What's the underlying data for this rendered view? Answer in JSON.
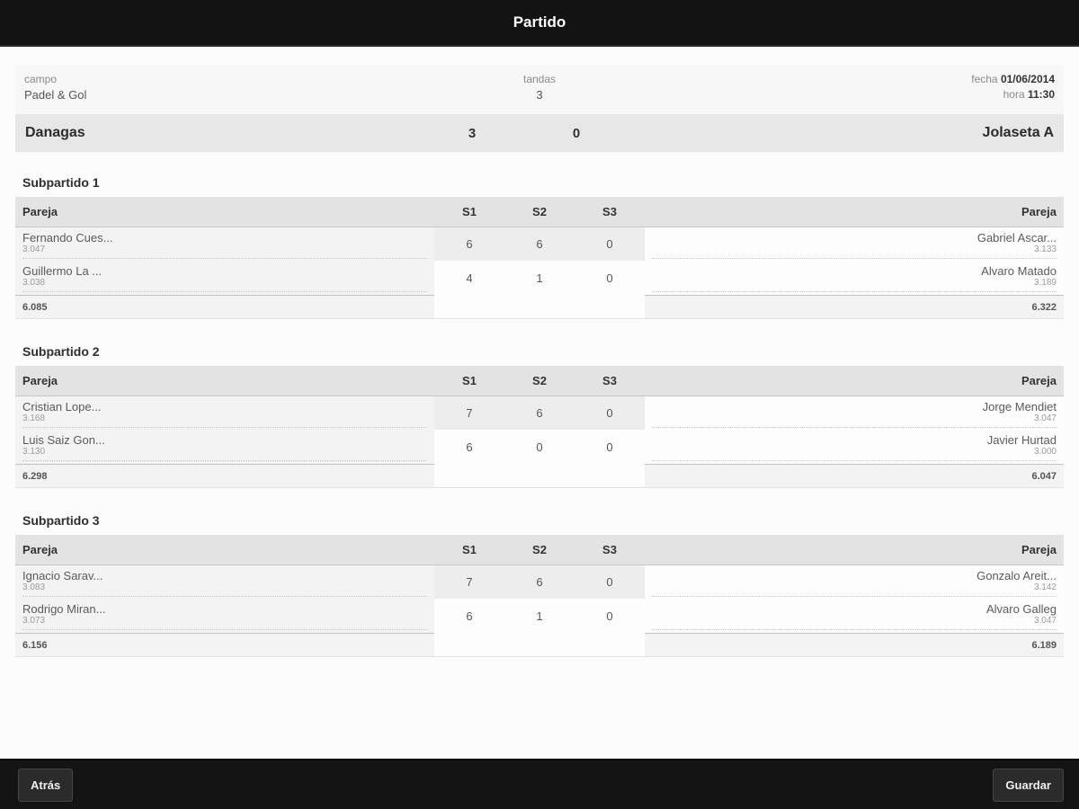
{
  "topbar": {
    "title": "Partido"
  },
  "info": {
    "campo_label": "campo",
    "campo_value": "Padel & Gol",
    "tandas_label": "tandas",
    "tandas_value": "3",
    "fecha_label": "fecha",
    "fecha_value": "01/06/2014",
    "hora_label": "hora",
    "hora_value": "11:30"
  },
  "score": {
    "home_team": "Danagas",
    "home_score": "3",
    "away_score": "0",
    "away_team": "Jolaseta A"
  },
  "labels": {
    "pareja": "Pareja",
    "s1": "S1",
    "s2": "S2",
    "s3": "S3"
  },
  "subpartidos": [
    {
      "title": "Subpartido 1",
      "sets": [
        [
          "6",
          "6",
          "0"
        ],
        [
          "4",
          "1",
          "0"
        ]
      ],
      "home": {
        "players": [
          {
            "name": "Fernando Cues...",
            "rating": "3.047"
          },
          {
            "name": "Guillermo La ...",
            "rating": "3.038"
          }
        ],
        "total": "6.085"
      },
      "away": {
        "players": [
          {
            "name": "Gabriel Ascar...",
            "rating": "3.133"
          },
          {
            "name": "Alvaro Matado",
            "rating": "3.189"
          }
        ],
        "total": "6.322"
      }
    },
    {
      "title": "Subpartido 2",
      "sets": [
        [
          "7",
          "6",
          "0"
        ],
        [
          "6",
          "0",
          "0"
        ]
      ],
      "home": {
        "players": [
          {
            "name": "Cristian Lope...",
            "rating": "3.168"
          },
          {
            "name": "Luis Saiz Gon...",
            "rating": "3.130"
          }
        ],
        "total": "6.298"
      },
      "away": {
        "players": [
          {
            "name": "Jorge Mendiet",
            "rating": "3.047"
          },
          {
            "name": "Javier Hurtad",
            "rating": "3.000"
          }
        ],
        "total": "6.047"
      }
    },
    {
      "title": "Subpartido 3",
      "sets": [
        [
          "7",
          "6",
          "0"
        ],
        [
          "6",
          "1",
          "0"
        ]
      ],
      "home": {
        "players": [
          {
            "name": "Ignacio Sarav...",
            "rating": "3.083"
          },
          {
            "name": "Rodrigo Miran...",
            "rating": "3.073"
          }
        ],
        "total": "6.156"
      },
      "away": {
        "players": [
          {
            "name": "Gonzalo Areit...",
            "rating": "3.142"
          },
          {
            "name": "Alvaro Galleg",
            "rating": "3.047"
          }
        ],
        "total": "6.189"
      }
    }
  ],
  "footer": {
    "back_label": "Atrás",
    "save_label": "Guardar"
  },
  "colors": {
    "topbar_bg": "#131313",
    "score_row_bg": "#e7e7e7",
    "table_header_bg": "#e3e3e3",
    "row_bg": "#f3f3f3",
    "cell_white": "#fdfdfd"
  }
}
